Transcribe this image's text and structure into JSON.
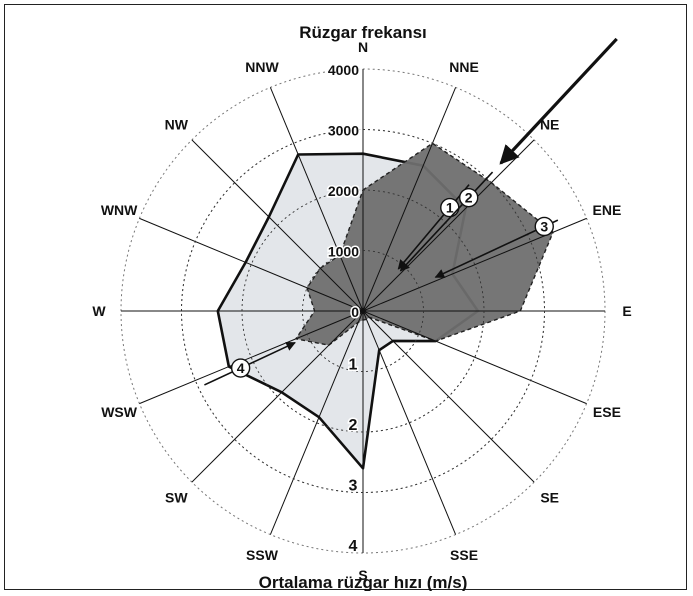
{
  "chart_data": {
    "type": "radar",
    "title": "Rüzgar frekansı",
    "xlabel": "Ortalama rüzgar hızı (m/s)",
    "directions": [
      "N",
      "NNE",
      "NE",
      "ENE",
      "E",
      "ESE",
      "SE",
      "SSE",
      "S",
      "SSW",
      "SW",
      "WSW",
      "W",
      "WNW",
      "NW",
      "NNW"
    ],
    "frequency_axis": {
      "ticks": [
        0,
        1000,
        2000,
        3000,
        4000
      ],
      "range": [
        0,
        4000
      ]
    },
    "speed_axis": {
      "ticks": [
        1,
        2,
        3,
        4
      ],
      "range": [
        0,
        4
      ]
    },
    "series": [
      {
        "quantity": "Rüzgar frekansı",
        "style": "dashed-dark-fill",
        "values": [
          2000,
          3000,
          3000,
          3400,
          2600,
          1300,
          150,
          150,
          150,
          200,
          800,
          1200,
          800,
          1000,
          1000,
          1000
        ]
      },
      {
        "quantity": "Ortalama rüzgar hızı (m/s)",
        "style": "solid-light-fill",
        "values": [
          2.6,
          2.6,
          2.4,
          1.6,
          1.9,
          1.3,
          0.7,
          0.7,
          2.6,
          1.9,
          1.9,
          2.4,
          2.4,
          2.1,
          2.2,
          2.8
        ]
      }
    ],
    "annotations": [
      {
        "label": "1",
        "direction_deg": 40
      },
      {
        "label": "2",
        "direction_deg": 43
      },
      {
        "label": "3",
        "direction_deg": 65
      },
      {
        "label": "4",
        "direction_deg": 245
      }
    ],
    "colors": {
      "frequency_fill": "#6f6f6f",
      "speed_fill": "#e3e6ea",
      "outline": "#111111",
      "grid": "#777777"
    }
  }
}
